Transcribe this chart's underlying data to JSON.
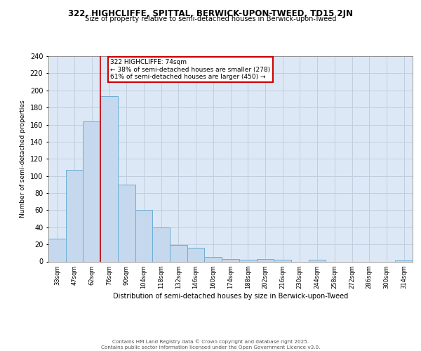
{
  "title": "322, HIGHCLIFFE, SPITTAL, BERWICK-UPON-TWEED, TD15 2JN",
  "subtitle": "Size of property relative to semi-detached houses in Berwick-upon-Tweed",
  "xlabel": "Distribution of semi-detached houses by size in Berwick-upon-Tweed",
  "ylabel": "Number of semi-detached properties",
  "categories": [
    "33sqm",
    "47sqm",
    "62sqm",
    "76sqm",
    "90sqm",
    "104sqm",
    "118sqm",
    "132sqm",
    "146sqm",
    "160sqm",
    "174sqm",
    "188sqm",
    "202sqm",
    "216sqm",
    "230sqm",
    "244sqm",
    "258sqm",
    "272sqm",
    "286sqm",
    "300sqm",
    "314sqm"
  ],
  "values": [
    27,
    107,
    164,
    193,
    90,
    60,
    40,
    19,
    16,
    5,
    3,
    2,
    3,
    2,
    0,
    2,
    0,
    0,
    0,
    0,
    1
  ],
  "bar_color": "#c5d8ee",
  "bar_edge_color": "#6baed6",
  "grid_color": "#c0cfe0",
  "background_color": "#dce8f5",
  "vline_color": "#cc0000",
  "annotation_text": "322 HIGHCLIFFE: 74sqm\n← 38% of semi-detached houses are smaller (278)\n61% of semi-detached houses are larger (450) →",
  "annotation_box_color": "#ffffff",
  "annotation_border_color": "#cc0000",
  "footer": "Contains HM Land Registry data © Crown copyright and database right 2025.\nContains public sector information licensed under the Open Government Licence v3.0.",
  "ylim": [
    0,
    240
  ],
  "yticks": [
    0,
    20,
    40,
    60,
    80,
    100,
    120,
    140,
    160,
    180,
    200,
    220,
    240
  ]
}
